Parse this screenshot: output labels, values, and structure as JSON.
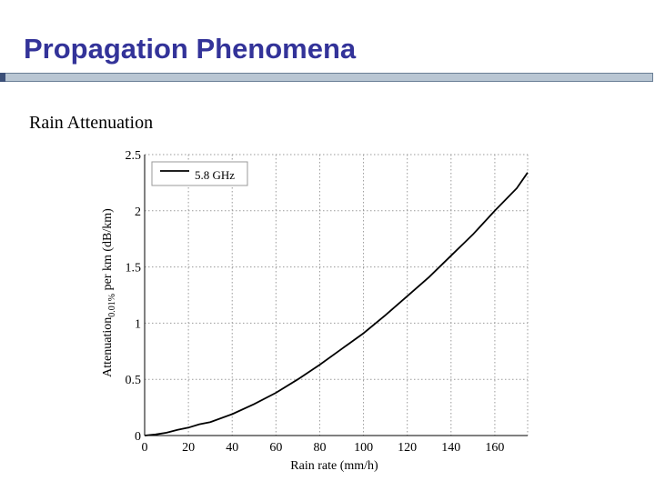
{
  "slide": {
    "title": "Propagation Phenomena",
    "subtitle": "Rain Attenuation"
  },
  "colors": {
    "title": "#333399",
    "rule_fill": "#b9c6d3",
    "rule_border": "#6a7f96",
    "grid": "#9a9a9a",
    "line": "#000000"
  },
  "chart_data": {
    "type": "line",
    "xlabel": "Rain rate (mm/h)",
    "ylabel": "Attenuation0.01% per km (dB/km)",
    "ylabel_main": "Attenuation",
    "ylabel_sub": "0.01%",
    "ylabel_rest": " per km (dB/km)",
    "xlim": [
      0,
      175
    ],
    "ylim": [
      0,
      2.5
    ],
    "x_ticks": [
      "0",
      "20",
      "40",
      "60",
      "80",
      "100",
      "120",
      "140",
      "160"
    ],
    "y_ticks": [
      "0",
      "0.5",
      "1",
      "1.5",
      "2",
      "2.5"
    ],
    "grid": "dotted",
    "legend_position": "top-left",
    "series": [
      {
        "name": "5.8 GHz",
        "x": [
          0,
          5,
          10,
          15,
          20,
          25,
          30,
          40,
          50,
          60,
          70,
          80,
          90,
          100,
          110,
          120,
          130,
          140,
          150,
          160,
          170,
          175
        ],
        "y": [
          0,
          0.01,
          0.025,
          0.05,
          0.07,
          0.1,
          0.12,
          0.19,
          0.28,
          0.38,
          0.5,
          0.63,
          0.77,
          0.91,
          1.07,
          1.24,
          1.41,
          1.6,
          1.79,
          2.0,
          2.2,
          2.34
        ]
      }
    ]
  }
}
